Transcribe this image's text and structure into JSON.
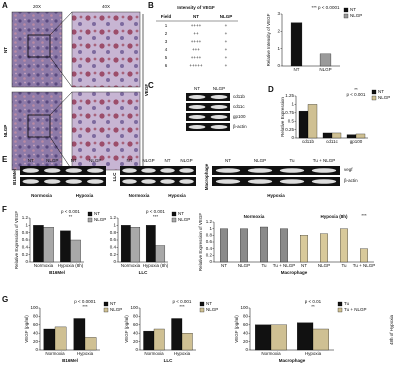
{
  "panel_labels": [
    "A",
    "B",
    "C",
    "D",
    "E",
    "F",
    "G"
  ],
  "panel_a": {
    "magnifications": [
      "20X",
      "40X"
    ],
    "rows": [
      "NT",
      "NLGP"
    ],
    "marker": "VEGF"
  },
  "panel_b_table": {
    "title": "Intensity of VEGF",
    "header": [
      "Field",
      "NT",
      "NLGP"
    ],
    "rows": [
      [
        "1",
        "++++",
        "+"
      ],
      [
        "2",
        "++",
        "+"
      ],
      [
        "3",
        "++++",
        "+"
      ],
      [
        "4",
        "+++",
        "+"
      ],
      [
        "5",
        "++++",
        "+"
      ],
      [
        "6",
        "+++++",
        "+"
      ]
    ]
  },
  "panel_c": {
    "columns": [
      "NT",
      "NLGP"
    ],
    "rows": [
      "cd11b",
      "cd11c",
      "gp100",
      "β-actin"
    ]
  },
  "panel_e": {
    "groups": [
      {
        "name": "B16Mel",
        "columns": [
          "NT",
          "NLGP",
          "NT",
          "NLGP"
        ],
        "conditions": [
          "Normoxia",
          "Hypoxia"
        ]
      },
      {
        "name": "LLC",
        "columns": [
          "NT",
          "NLGP",
          "NT",
          "NLGP"
        ],
        "conditions": [
          "Normoxia",
          "Hypoxia"
        ]
      },
      {
        "name": "Macrophage",
        "columns": [
          "NT",
          "NLGP",
          "Tu",
          "Tu + NLGP"
        ],
        "conditions": [
          "Hypoxia"
        ]
      }
    ],
    "rows": [
      "vegf",
      "β-actin"
    ]
  },
  "side_note": "48h of Hypoxia",
  "chart_data": [
    {
      "type": "bar",
      "categories": [
        "NT",
        "NLGP"
      ],
      "series": [
        {
          "name": "NT",
          "color": "#111111",
          "values": [
            2.5,
            null
          ]
        },
        {
          "name": "NLGP",
          "color": "#9a9a9a",
          "values": [
            null,
            0.7
          ]
        }
      ],
      "ylabel": "Relative Intensity of VEGF",
      "ylim": [
        0,
        3
      ],
      "yticks": [
        0,
        1,
        2,
        3
      ],
      "annotations": [
        "*** p < 0.0001"
      ],
      "legend": "right"
    },
    {
      "type": "bar",
      "categories": [
        "cd11b",
        "cd11c",
        "gp100"
      ],
      "series": [
        {
          "name": "NT",
          "color": "#111111",
          "values": [
            0.8,
            0.15,
            0.1
          ]
        },
        {
          "name": "NLGP",
          "color": "#cfc093",
          "values": [
            1.0,
            0.15,
            0.12
          ]
        }
      ],
      "ylabel": "Relative Expression",
      "ylim": [
        0,
        1.25
      ],
      "yticks": [
        0,
        0.25,
        0.5,
        0.75,
        1,
        1.25
      ],
      "annotations": [
        "**",
        "p < 0.001"
      ],
      "legend": "right"
    },
    {
      "type": "bar",
      "categories": [
        "Normoxia",
        "Hypoxia (8h)"
      ],
      "series": [
        {
          "name": "NT",
          "color": "#111111",
          "values": [
            1.0,
            0.85
          ]
        },
        {
          "name": "NLGP",
          "color": "#a8a8a8",
          "values": [
            0.95,
            0.6
          ]
        }
      ],
      "ylabel": "Relative Expression of VEGF",
      "xlabel": "B16Mel",
      "ylim": [
        0,
        1.2
      ],
      "yticks": [
        0,
        0.2,
        0.4,
        0.6,
        0.8,
        1,
        1.2
      ],
      "annotations": [
        "p < 0.001",
        "**"
      ],
      "legend": "right"
    },
    {
      "type": "bar",
      "categories": [
        "Normoxia",
        "Hypoxia (8h)"
      ],
      "series": [
        {
          "name": "NT",
          "color": "#111111",
          "values": [
            1.0,
            1.0
          ]
        },
        {
          "name": "NLGP",
          "color": "#a8a8a8",
          "values": [
            0.95,
            0.45
          ]
        }
      ],
      "xlabel": "LLC",
      "ylim": [
        0,
        1.2
      ],
      "yticks": [
        0,
        0.2,
        0.4,
        0.6,
        0.8,
        1,
        1.2
      ],
      "annotations": [
        "p < 0.001",
        "***"
      ],
      "legend": "right"
    },
    {
      "type": "bar",
      "categories": [
        "NT",
        "NLGP",
        "Tu",
        "Tu + NLGP",
        "NT",
        "NLGP",
        "Tu",
        "Tu + NLGP"
      ],
      "series": [
        {
          "name": "Normoxia",
          "color": "#8a8a8a",
          "values": [
            1.0,
            1.0,
            1.05,
            1.0,
            null,
            null,
            null,
            null
          ]
        },
        {
          "name": "Hypoxia (8h)",
          "color": "#d8c99a",
          "values": [
            null,
            null,
            null,
            null,
            0.8,
            0.85,
            1.0,
            0.4
          ]
        }
      ],
      "ylabel": "Relative Expression of VEGF",
      "xlabel": "Macrophage",
      "ylim": [
        0,
        1.2
      ],
      "yticks": [
        0,
        0.2,
        0.4,
        0.6,
        0.8,
        1,
        1.2
      ],
      "annotations": [
        "***"
      ],
      "legend": "groups"
    },
    {
      "type": "bar",
      "categories": [
        "Normoxia",
        "Hypoxia"
      ],
      "series": [
        {
          "name": "NT",
          "color": "#111111",
          "values": [
            50,
            75
          ]
        },
        {
          "name": "NLGP",
          "color": "#cfc093",
          "values": [
            55,
            30
          ]
        }
      ],
      "ylabel": "VEGF (pg/ml)",
      "xlabel": "B16Mel",
      "ylim": [
        0,
        100
      ],
      "yticks": [
        0,
        20,
        40,
        60,
        80,
        100
      ],
      "annotations": [
        "p < 0.0001",
        "***"
      ],
      "legend": "right"
    },
    {
      "type": "bar",
      "categories": [
        "Normoxia",
        "Hypoxia"
      ],
      "series": [
        {
          "name": "NT",
          "color": "#111111",
          "values": [
            45,
            75
          ]
        },
        {
          "name": "NLGP",
          "color": "#cfc093",
          "values": [
            50,
            40
          ]
        }
      ],
      "ylabel": "VEGF (pg/ml)",
      "xlabel": "LLC",
      "ylim": [
        0,
        100
      ],
      "yticks": [
        0,
        20,
        40,
        60,
        80,
        100
      ],
      "annotations": [
        "p < 0.001",
        "***"
      ],
      "legend": "right"
    },
    {
      "type": "bar",
      "categories": [
        "Normoxia",
        "Hypoxia"
      ],
      "series": [
        {
          "name": "Tu",
          "color": "#111111",
          "values": [
            60,
            65
          ]
        },
        {
          "name": "Tu + NLGP",
          "color": "#cfc093",
          "values": [
            60,
            50
          ]
        }
      ],
      "ylabel": "VEGF (pg/ml)",
      "xlabel": "Macrophage",
      "ylim": [
        0,
        100
      ],
      "yticks": [
        0,
        20,
        40,
        60,
        80,
        100
      ],
      "annotations": [
        "p < 0.01",
        "**"
      ],
      "legend": "right"
    }
  ]
}
